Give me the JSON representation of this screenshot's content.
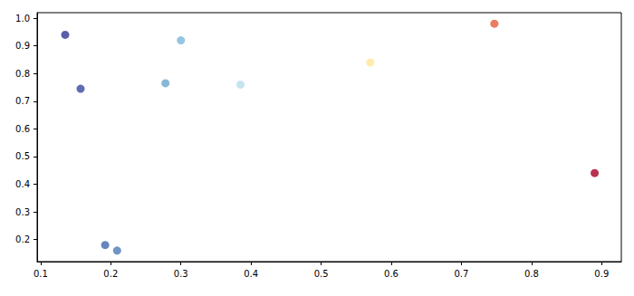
{
  "chart_data": {
    "type": "scatter",
    "x": [
      0.135,
      0.157,
      0.192,
      0.209,
      0.278,
      0.3,
      0.385,
      0.57,
      0.747,
      0.89
    ],
    "values": [
      0.94,
      0.745,
      0.18,
      0.16,
      0.765,
      0.92,
      0.76,
      0.84,
      0.98,
      0.44
    ],
    "colors": [
      "#313695",
      "#36479e",
      "#3f67ad",
      "#4a7ab7",
      "#6aa6cd",
      "#7db6d7",
      "#b8dcec",
      "#fee79b",
      "#e75a3c",
      "#a50026"
    ],
    "marker": "circle",
    "xlim": [
      0.095,
      0.928
    ],
    "ylim": [
      0.12,
      1.02
    ],
    "xticks": [
      0.1,
      0.2,
      0.3,
      0.4,
      0.5,
      0.6,
      0.7,
      0.8,
      0.9
    ],
    "yticks": [
      0.2,
      0.3,
      0.4,
      0.5,
      0.6,
      0.7,
      0.8,
      0.9,
      {
        "value": 1,
        "label": "1.0"
      }
    ],
    "grid": false
  }
}
